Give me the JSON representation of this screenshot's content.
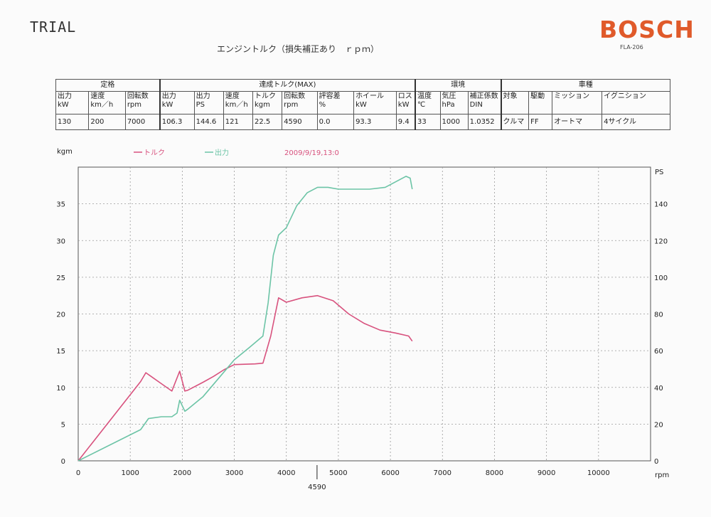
{
  "header": {
    "label": "TRIAL",
    "brand": "BOSCH",
    "model": "FLA-206",
    "title": "エンジントルク（損失補正あり　ｒｐｍ）"
  },
  "colors": {
    "torque": "#d8527e",
    "power": "#6cc4a6",
    "brand": "#e05a2a",
    "grid": "#999999"
  },
  "table": {
    "groups": [
      {
        "label": "定格",
        "key": "rated"
      },
      {
        "label": "達成トルク(MAX)",
        "key": "max"
      },
      {
        "label": "環境",
        "key": "env"
      },
      {
        "label": "車種",
        "key": "vehicle"
      }
    ],
    "columns": [
      {
        "header": "出力\nkW",
        "value": "130"
      },
      {
        "header": "速度\nkm／h",
        "value": "200"
      },
      {
        "header": "回転数\nrpm",
        "value": "7000"
      },
      {
        "header": "出力\nkW",
        "value": "106.3"
      },
      {
        "header": "出力\nPS",
        "value": "144.6"
      },
      {
        "header": "速度\nkm／h",
        "value": "121"
      },
      {
        "header": "トルク\nkgm",
        "value": "22.5"
      },
      {
        "header": "回転数\nrpm",
        "value": "4590"
      },
      {
        "header": "評容差\n%",
        "value": "0.0"
      },
      {
        "header": "ホイール\nkW",
        "value": "93.3"
      },
      {
        "header": "ロス\nkW",
        "value": "9.4"
      },
      {
        "header": "温度\n℃",
        "value": "33"
      },
      {
        "header": "気圧\nhPa",
        "value": "1000"
      },
      {
        "header": "補正係数\nDIN",
        "value": "1.0352"
      },
      {
        "header": "対象",
        "value": "クルマ"
      },
      {
        "header": "駆動",
        "value": "FF"
      },
      {
        "header": "ミッション",
        "value": "オートマ"
      },
      {
        "header": "イグニション",
        "value": "4サイクル"
      }
    ]
  },
  "chart_data": {
    "type": "line",
    "title": "",
    "date": "2009/9/19,13:0",
    "xlabel": "rpm",
    "ylabel_left": "kgm",
    "ylabel_right": "PS",
    "xlim": [
      0,
      11000
    ],
    "ylim_left": [
      0,
      40
    ],
    "ylim_right": [
      0,
      160
    ],
    "x_ticks": [
      0,
      1000,
      2000,
      3000,
      4000,
      5000,
      6000,
      7000,
      8000,
      9000,
      10000
    ],
    "y_ticks_left": [
      0,
      5,
      10,
      15,
      20,
      25,
      30,
      35
    ],
    "y_ticks_right": [
      0,
      20,
      40,
      60,
      80,
      100,
      120,
      140
    ],
    "grid": true,
    "legend_position": "top",
    "marker": {
      "x": 4590,
      "label": "4590"
    },
    "series": [
      {
        "name": "トルク",
        "axis": "left",
        "x": [
          0,
          1200,
          1300,
          1400,
          1600,
          1800,
          1950,
          2050,
          2100,
          2400,
          2600,
          2800,
          3000,
          3400,
          3550,
          3700,
          3850,
          4000,
          4300,
          4600,
          4900,
          5200,
          5500,
          5800,
          6100,
          6350,
          6420
        ],
        "y": [
          0,
          10.8,
          12.0,
          11.5,
          10.5,
          9.5,
          12.2,
          9.5,
          9.6,
          10.7,
          11.5,
          12.4,
          13.1,
          13.2,
          13.3,
          17.0,
          22.2,
          21.6,
          22.2,
          22.5,
          21.8,
          20.0,
          18.7,
          17.8,
          17.4,
          17.0,
          16.3
        ]
      },
      {
        "name": "出力",
        "axis": "right",
        "x": [
          0,
          1200,
          1350,
          1600,
          1800,
          1900,
          1950,
          2050,
          2100,
          2400,
          2700,
          3000,
          3300,
          3550,
          3650,
          3750,
          3850,
          4000,
          4200,
          4400,
          4600,
          4800,
          5000,
          5300,
          5600,
          5900,
          6100,
          6300,
          6380,
          6420
        ],
        "y": [
          0,
          17,
          23,
          24,
          24,
          26,
          33,
          27,
          28,
          35,
          45,
          55,
          62,
          68,
          86,
          112,
          123,
          127,
          139,
          146,
          149,
          149,
          148,
          148,
          148,
          149,
          152,
          155,
          154,
          148
        ]
      }
    ]
  }
}
